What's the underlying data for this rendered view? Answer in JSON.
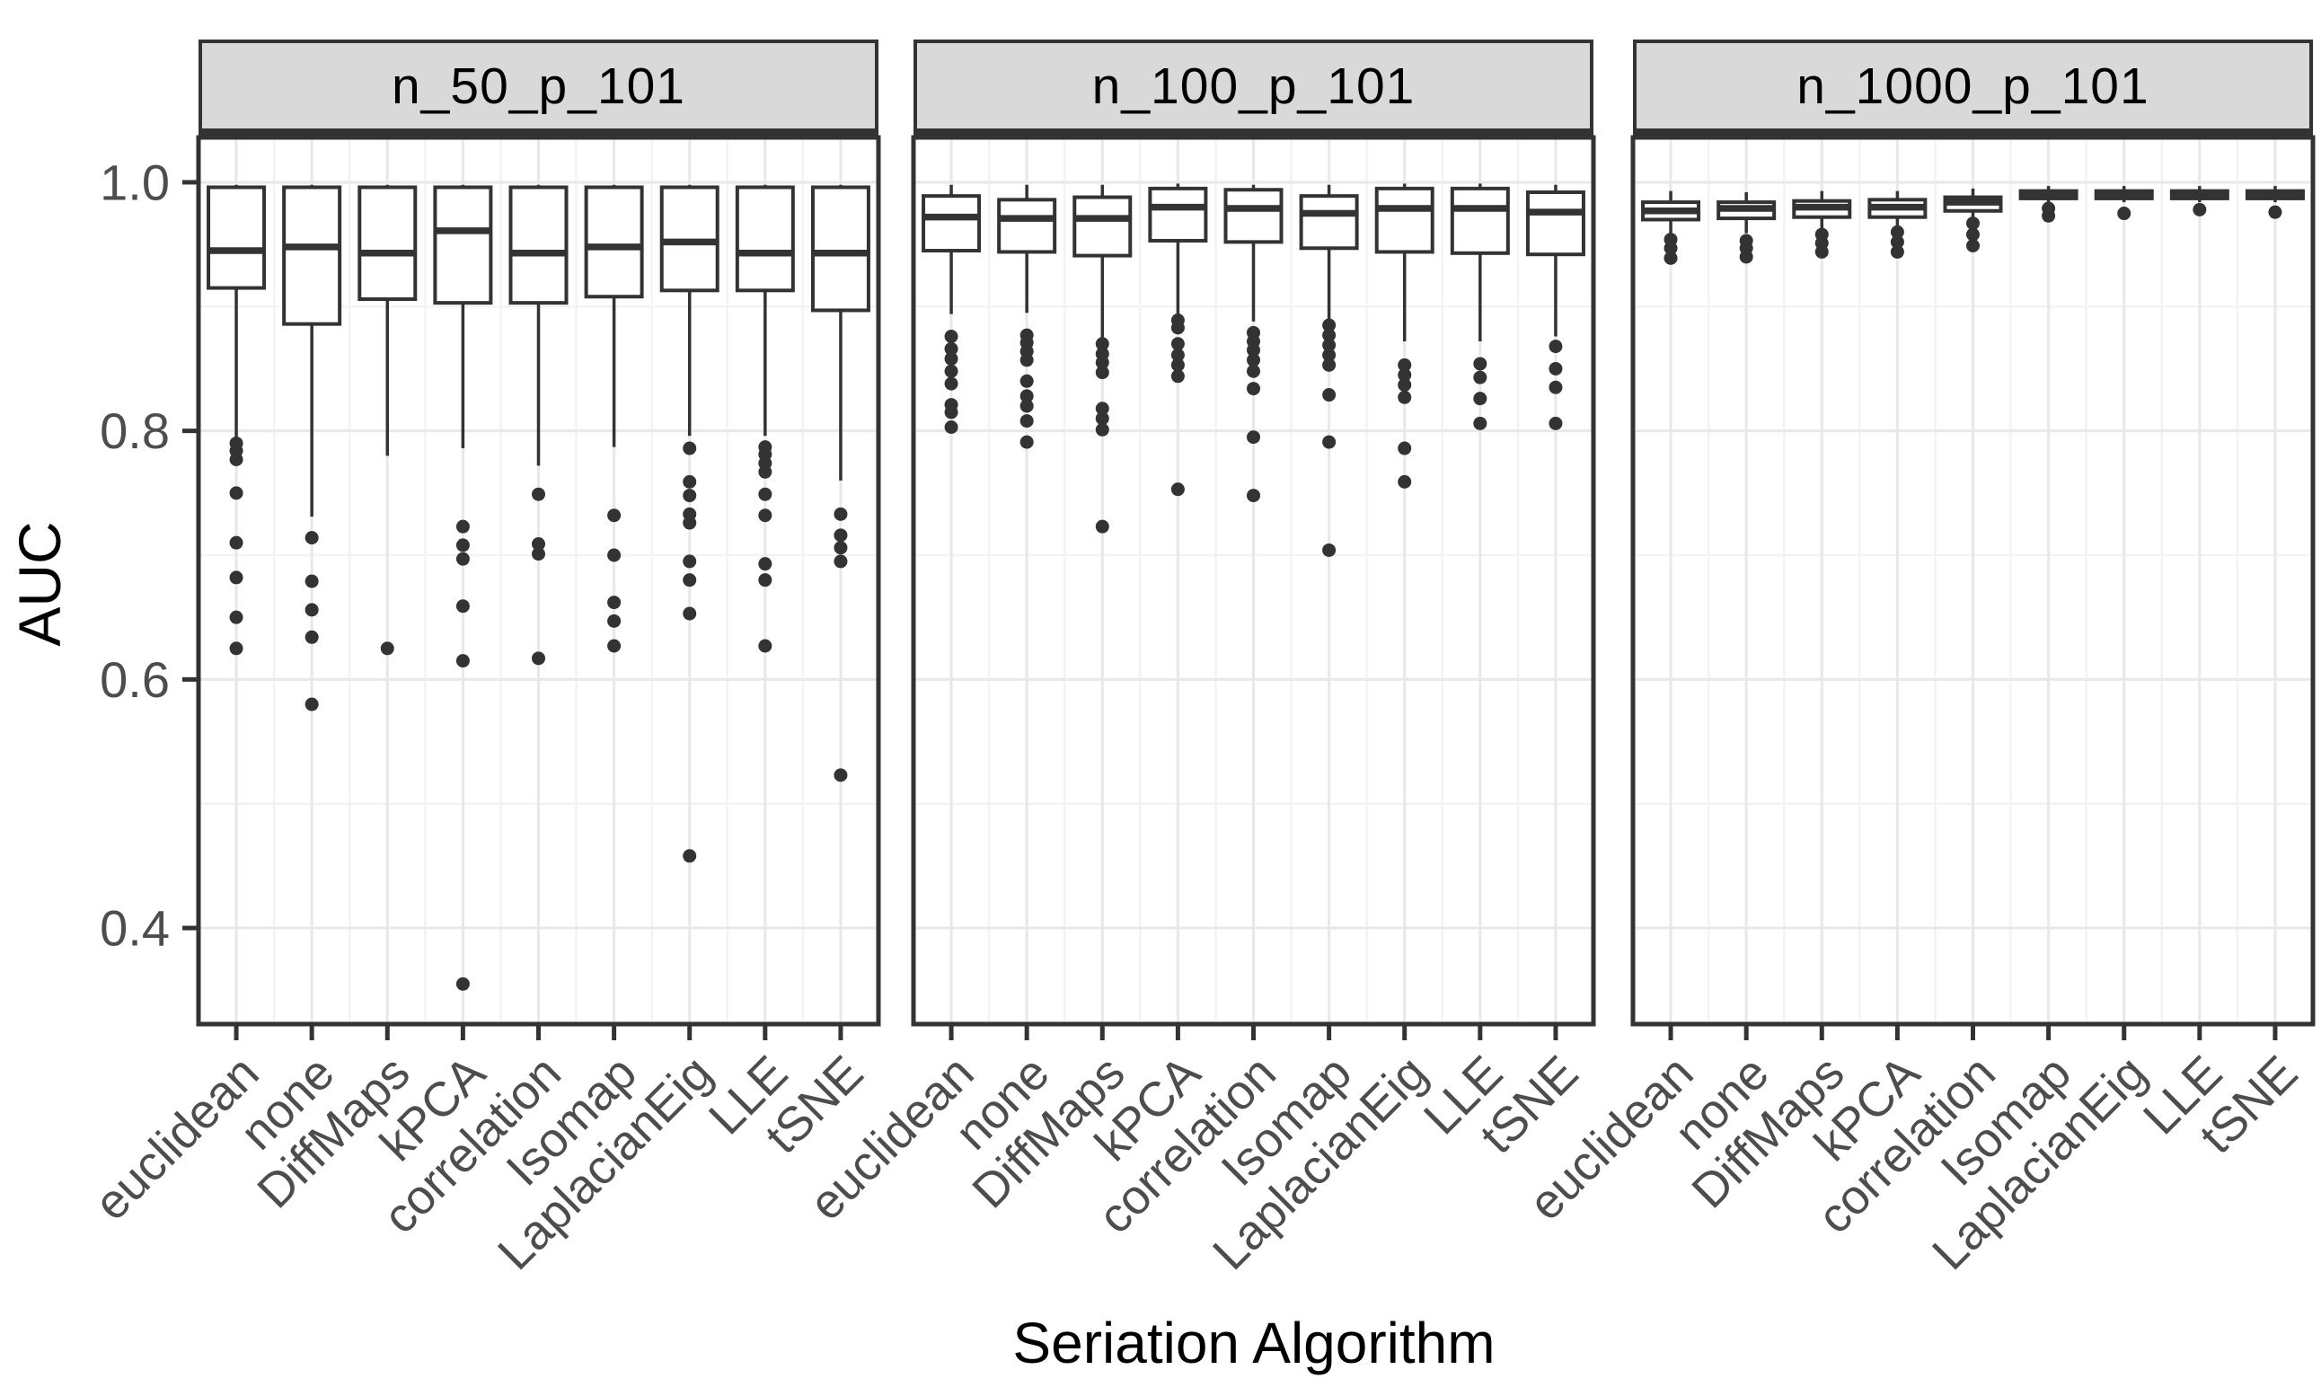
{
  "figure": {
    "x_axis_title": "Seriation Algorithm",
    "y_axis_title": "AUC"
  },
  "style": {
    "background": "#ffffff",
    "strip_fill": "#d9d9d9",
    "strip_border": "#333333",
    "panel_border": "#333333",
    "box_stroke": "#333333",
    "box_fill": "#ffffff",
    "outlier_fill": "#333333",
    "grid_major": "#e8e8e8",
    "grid_minor": "#f3f3f3",
    "tick_color": "#333333",
    "tick_label_color": "#4d4d4d",
    "axis_title_color": "#000000"
  },
  "chart_data": {
    "type": "boxplot",
    "title": "",
    "xlabel": "Seriation Algorithm",
    "ylabel": "AUC",
    "grid": true,
    "legend": false,
    "ylim": [
      0.3227,
      1.0361
    ],
    "y_ticks": [
      {
        "value": 1.0,
        "label": "1.0"
      },
      {
        "value": 0.8,
        "label": "0.8"
      },
      {
        "value": 0.6,
        "label": "0.6"
      },
      {
        "value": 0.4,
        "label": "0.4"
      }
    ],
    "y_minor": [
      0.9,
      0.7,
      0.5
    ],
    "categories": [
      "euclidean",
      "none",
      "DiffMaps",
      "kPCA",
      "correlation",
      "Isomap",
      "LaplacianEig",
      "LLE",
      "tSNE"
    ],
    "panels": [
      {
        "title": "n_50_p_101",
        "boxes": [
          {
            "category": "euclidean",
            "whisker_low": 0.795,
            "q1": 0.915,
            "median": 0.945,
            "q3": 0.996,
            "whisker_high": 0.998,
            "outliers": [
              0.79,
              0.784,
              0.777,
              0.75,
              0.71,
              0.682,
              0.65,
              0.625
            ]
          },
          {
            "category": "none",
            "whisker_low": 0.731,
            "q1": 0.886,
            "median": 0.948,
            "q3": 0.996,
            "whisker_high": 0.998,
            "outliers": [
              0.714,
              0.679,
              0.656,
              0.634,
              0.58
            ]
          },
          {
            "category": "DiffMaps",
            "whisker_low": 0.78,
            "q1": 0.906,
            "median": 0.943,
            "q3": 0.996,
            "whisker_high": 0.998,
            "outliers": [
              0.625
            ]
          },
          {
            "category": "kPCA",
            "whisker_low": 0.786,
            "q1": 0.903,
            "median": 0.961,
            "q3": 0.996,
            "whisker_high": 0.998,
            "outliers": [
              0.723,
              0.708,
              0.697,
              0.659,
              0.615,
              0.355
            ]
          },
          {
            "category": "correlation",
            "whisker_low": 0.772,
            "q1": 0.903,
            "median": 0.943,
            "q3": 0.996,
            "whisker_high": 0.998,
            "outliers": [
              0.749,
              0.709,
              0.701,
              0.617
            ]
          },
          {
            "category": "Isomap",
            "whisker_low": 0.787,
            "q1": 0.908,
            "median": 0.948,
            "q3": 0.996,
            "whisker_high": 0.998,
            "outliers": [
              0.732,
              0.7,
              0.662,
              0.647,
              0.627
            ]
          },
          {
            "category": "LaplacianEig",
            "whisker_low": 0.796,
            "q1": 0.913,
            "median": 0.952,
            "q3": 0.996,
            "whisker_high": 0.998,
            "outliers": [
              0.786,
              0.759,
              0.748,
              0.733,
              0.726,
              0.695,
              0.68,
              0.653,
              0.458
            ]
          },
          {
            "category": "LLE",
            "whisker_low": 0.796,
            "q1": 0.913,
            "median": 0.943,
            "q3": 0.996,
            "whisker_high": 0.998,
            "outliers": [
              0.787,
              0.781,
              0.774,
              0.767,
              0.749,
              0.732,
              0.693,
              0.68,
              0.627
            ]
          },
          {
            "category": "tSNE",
            "whisker_low": 0.76,
            "q1": 0.897,
            "median": 0.943,
            "q3": 0.996,
            "whisker_high": 0.998,
            "outliers": [
              0.733,
              0.716,
              0.706,
              0.695,
              0.523
            ]
          }
        ]
      },
      {
        "title": "n_100_p_101",
        "boxes": [
          {
            "category": "euclidean",
            "whisker_low": 0.894,
            "q1": 0.945,
            "median": 0.972,
            "q3": 0.989,
            "whisker_high": 0.998,
            "outliers": [
              0.876,
              0.866,
              0.858,
              0.848,
              0.838,
              0.821,
              0.815,
              0.803
            ]
          },
          {
            "category": "none",
            "whisker_low": 0.895,
            "q1": 0.944,
            "median": 0.971,
            "q3": 0.986,
            "whisker_high": 0.998,
            "outliers": [
              0.877,
              0.871,
              0.864,
              0.857,
              0.84,
              0.828,
              0.82,
              0.808,
              0.791
            ]
          },
          {
            "category": "DiffMaps",
            "whisker_low": 0.874,
            "q1": 0.941,
            "median": 0.971,
            "q3": 0.988,
            "whisker_high": 0.998,
            "outliers": [
              0.87,
              0.862,
              0.855,
              0.847,
              0.818,
              0.81,
              0.801,
              0.723
            ]
          },
          {
            "category": "kPCA",
            "whisker_low": 0.891,
            "q1": 0.953,
            "median": 0.98,
            "q3": 0.995,
            "whisker_high": 0.999,
            "outliers": [
              0.889,
              0.883,
              0.87,
              0.861,
              0.853,
              0.844,
              0.753
            ]
          },
          {
            "category": "correlation",
            "whisker_low": 0.888,
            "q1": 0.952,
            "median": 0.979,
            "q3": 0.994,
            "whisker_high": 0.998,
            "outliers": [
              0.879,
              0.872,
              0.865,
              0.857,
              0.848,
              0.834,
              0.795,
              0.748
            ]
          },
          {
            "category": "Isomap",
            "whisker_low": 0.886,
            "q1": 0.947,
            "median": 0.975,
            "q3": 0.989,
            "whisker_high": 0.998,
            "outliers": [
              0.885,
              0.877,
              0.869,
              0.861,
              0.853,
              0.829,
              0.791,
              0.704
            ]
          },
          {
            "category": "LaplacianEig",
            "whisker_low": 0.872,
            "q1": 0.944,
            "median": 0.979,
            "q3": 0.995,
            "whisker_high": 0.999,
            "outliers": [
              0.853,
              0.845,
              0.837,
              0.827,
              0.786,
              0.759
            ]
          },
          {
            "category": "LLE",
            "whisker_low": 0.872,
            "q1": 0.943,
            "median": 0.979,
            "q3": 0.995,
            "whisker_high": 0.999,
            "outliers": [
              0.854,
              0.843,
              0.826,
              0.806
            ]
          },
          {
            "category": "tSNE",
            "whisker_low": 0.876,
            "q1": 0.942,
            "median": 0.976,
            "q3": 0.992,
            "whisker_high": 0.998,
            "outliers": [
              0.868,
              0.85,
              0.835,
              0.806
            ]
          }
        ]
      },
      {
        "title": "n_1000_p_101",
        "boxes": [
          {
            "category": "euclidean",
            "whisker_low": 0.957,
            "q1": 0.97,
            "median": 0.977,
            "q3": 0.984,
            "whisker_high": 0.993,
            "outliers": [
              0.954,
              0.947,
              0.939
            ]
          },
          {
            "category": "none",
            "whisker_low": 0.959,
            "q1": 0.971,
            "median": 0.979,
            "q3": 0.984,
            "whisker_high": 0.992,
            "outliers": [
              0.953,
              0.947,
              0.94
            ]
          },
          {
            "category": "DiffMaps",
            "whisker_low": 0.96,
            "q1": 0.972,
            "median": 0.98,
            "q3": 0.985,
            "whisker_high": 0.993,
            "outliers": [
              0.958,
              0.951,
              0.944
            ]
          },
          {
            "category": "kPCA",
            "whisker_low": 0.961,
            "q1": 0.972,
            "median": 0.98,
            "q3": 0.986,
            "whisker_high": 0.993,
            "outliers": [
              0.96,
              0.952,
              0.944
            ]
          },
          {
            "category": "correlation",
            "whisker_low": 0.971,
            "q1": 0.977,
            "median": 0.984,
            "q3": 0.988,
            "whisker_high": 0.995,
            "outliers": [
              0.967,
              0.958,
              0.949
            ]
          },
          {
            "category": "Isomap",
            "whisker_low": 0.984,
            "q1": 0.987,
            "median": 0.99,
            "q3": 0.993,
            "whisker_high": 0.997,
            "outliers": [
              0.979,
              0.973
            ]
          },
          {
            "category": "LaplacianEig",
            "whisker_low": 0.984,
            "q1": 0.987,
            "median": 0.99,
            "q3": 0.993,
            "whisker_high": 0.997,
            "outliers": [
              0.975
            ]
          },
          {
            "category": "LLE",
            "whisker_low": 0.984,
            "q1": 0.987,
            "median": 0.99,
            "q3": 0.993,
            "whisker_high": 0.997,
            "outliers": [
              0.978
            ]
          },
          {
            "category": "tSNE",
            "whisker_low": 0.984,
            "q1": 0.987,
            "median": 0.99,
            "q3": 0.993,
            "whisker_high": 0.997,
            "outliers": [
              0.976
            ]
          }
        ]
      }
    ]
  }
}
